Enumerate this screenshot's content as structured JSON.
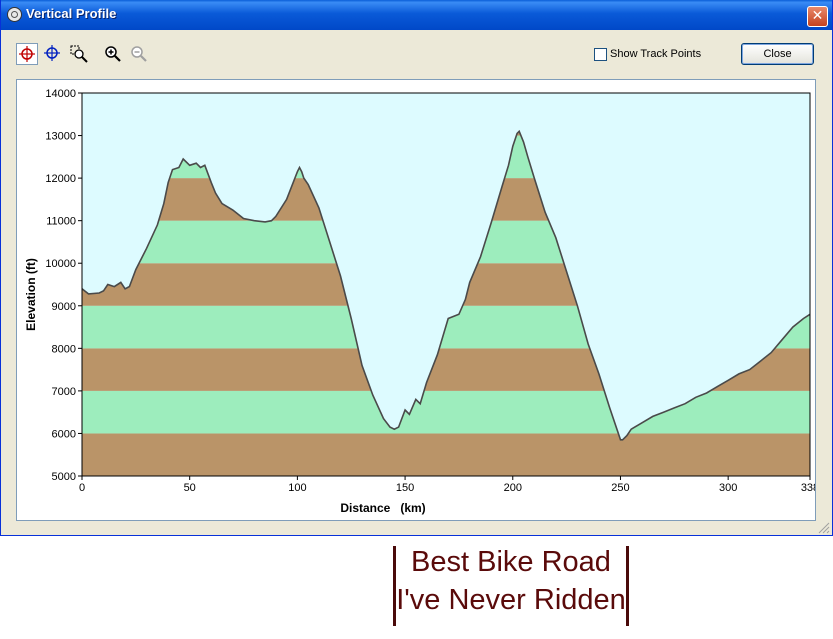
{
  "window": {
    "title": "Vertical Profile",
    "close_glyph": "✕"
  },
  "toolbar": {
    "tools": [
      {
        "icon": "crosshair-red-icon",
        "active": true
      },
      {
        "icon": "crosshair-blue-icon",
        "active": false
      },
      {
        "icon": "zoom-box-icon",
        "active": false
      },
      {
        "icon": "zoom-in-icon",
        "active": false
      },
      {
        "icon": "zoom-out-icon",
        "active": false
      }
    ],
    "show_track_points_label": "Show Track Points",
    "show_track_points_checked": false,
    "close_button_label": "Close"
  },
  "colors": {
    "sky": "#ddfbff",
    "band_brown": "#ba9468",
    "band_green": "#9dedbd",
    "line": "#4a4a4a"
  },
  "chart_data": {
    "type": "area",
    "xlabel": "Distance   (km)",
    "ylabel": "Elevation (ft)",
    "xlim": [
      0,
      338
    ],
    "ylim": [
      5000,
      14000
    ],
    "x_ticks": [
      "0",
      "50",
      "100",
      "150",
      "200",
      "250",
      "300",
      "338"
    ],
    "x_tick_values": [
      0,
      50,
      100,
      150,
      200,
      250,
      300,
      338
    ],
    "y_ticks": [
      "5000",
      "6000",
      "7000",
      "8000",
      "9000",
      "10000",
      "11000",
      "12000",
      "13000",
      "14000"
    ],
    "y_tick_values": [
      5000,
      6000,
      7000,
      8000,
      9000,
      10000,
      11000,
      12000,
      13000,
      14000
    ],
    "x": [
      0,
      3,
      8,
      10,
      12,
      15,
      18,
      20,
      22,
      25,
      30,
      35,
      38,
      40,
      42,
      45,
      47,
      50,
      53,
      55,
      57,
      60,
      62,
      65,
      70,
      75,
      80,
      85,
      88,
      90,
      95,
      100,
      101,
      102,
      103,
      105,
      110,
      115,
      120,
      125,
      130,
      135,
      140,
      143,
      145,
      147,
      150,
      152,
      155,
      157,
      160,
      165,
      170,
      175,
      178,
      180,
      185,
      190,
      195,
      198,
      200,
      202,
      203,
      205,
      207,
      210,
      215,
      220,
      225,
      230,
      235,
      240,
      245,
      250,
      251,
      253,
      255,
      260,
      265,
      270,
      275,
      280,
      285,
      290,
      295,
      300,
      305,
      310,
      315,
      320,
      325,
      330,
      335,
      338
    ],
    "y": [
      9400,
      9280,
      9300,
      9350,
      9500,
      9450,
      9550,
      9400,
      9450,
      9850,
      10350,
      10900,
      11400,
      11900,
      12200,
      12250,
      12450,
      12300,
      12350,
      12250,
      12300,
      11900,
      11650,
      11400,
      11250,
      11050,
      11000,
      10970,
      11000,
      11100,
      11500,
      12150,
      12250,
      12150,
      12000,
      11850,
      11300,
      10500,
      9700,
      8700,
      7600,
      6900,
      6350,
      6150,
      6100,
      6150,
      6550,
      6450,
      6800,
      6700,
      7200,
      7850,
      8700,
      8800,
      9150,
      9550,
      10150,
      10950,
      11800,
      12300,
      12750,
      13050,
      13100,
      12850,
      12500,
      12000,
      11200,
      10600,
      9800,
      9000,
      8100,
      7400,
      6600,
      5850,
      5850,
      5950,
      6100,
      6250,
      6400,
      6500,
      6600,
      6700,
      6850,
      6950,
      7100,
      7250,
      7400,
      7500,
      7700,
      7900,
      8200,
      8500,
      8700,
      8800
    ]
  },
  "caption": {
    "line1": "Best Bike Road",
    "line2": "I've Never Ridden"
  }
}
